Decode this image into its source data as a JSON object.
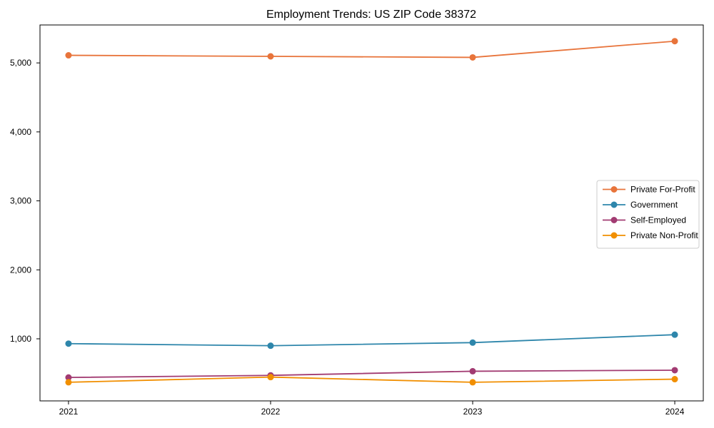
{
  "chart_data": {
    "type": "line",
    "title": "Employment Trends: US ZIP Code 38372",
    "x": [
      "2021",
      "2022",
      "2023",
      "2024"
    ],
    "series": [
      {
        "name": "Private For-Profit",
        "color": "#E8743B",
        "values": [
          5110,
          5095,
          5080,
          5315
        ]
      },
      {
        "name": "Government",
        "color": "#2E86AB",
        "values": [
          930,
          900,
          945,
          1060
        ]
      },
      {
        "name": "Self-Employed",
        "color": "#A23B72",
        "values": [
          440,
          470,
          530,
          545
        ]
      },
      {
        "name": "Private Non-Profit",
        "color": "#F18F01",
        "values": [
          370,
          445,
          370,
          415
        ]
      }
    ],
    "xlabel": "",
    "ylabel": "",
    "ylim": [
      100,
      5550
    ],
    "yticks": [
      1000,
      2000,
      3000,
      4000,
      5000
    ],
    "ytick_labels": [
      "1,000",
      "2,000",
      "3,000",
      "4,000",
      "5,000"
    ],
    "grid": false,
    "legend_position": "right",
    "marker": "circle",
    "background_color": "#ffffff",
    "spine_color": "#000000",
    "legend_border_color": "#cccccc"
  }
}
